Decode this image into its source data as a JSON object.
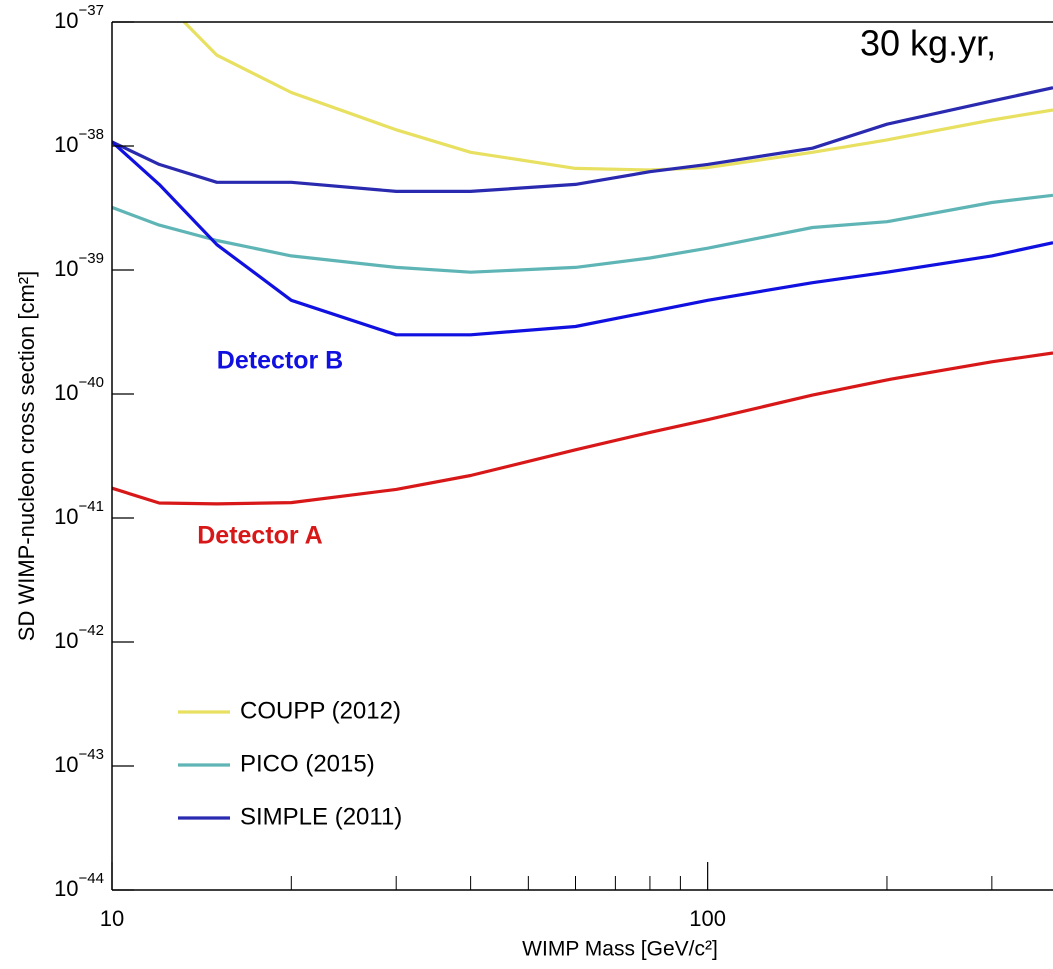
{
  "chart_data": {
    "type": "line",
    "annotation": "30 kg.yr,",
    "xlabel": "WIMP Mass [GeV/c²]",
    "ylabel": "SD WIMP-nucleon cross section [cm²]",
    "xscale": "log",
    "yscale": "log",
    "xlim": [
      10,
      380
    ],
    "ylim": [
      1e-44,
      1e-37
    ],
    "xticks": [
      10,
      100
    ],
    "xminorticks": [
      20,
      30,
      40,
      50,
      60,
      70,
      80,
      90,
      200,
      300
    ],
    "yticks": [
      {
        "value": 1e-44,
        "label": "10−44"
      },
      {
        "value": 1e-43,
        "label": "10−43"
      },
      {
        "value": 1e-42,
        "label": "10−42"
      },
      {
        "value": 1e-41,
        "label": "10−41"
      },
      {
        "value": 1e-40,
        "label": "10−40"
      },
      {
        "value": 1e-39,
        "label": "10−39"
      },
      {
        "value": 1e-38,
        "label": "10−38"
      },
      {
        "value": 1e-37,
        "label": "10−37"
      }
    ],
    "legend": "lower left",
    "x": [
      10,
      12,
      15,
      20,
      30,
      40,
      60,
      80,
      100,
      150,
      200,
      300,
      380
    ],
    "series": [
      {
        "name": "COUPP (2012)",
        "color": "#e8e060",
        "values": [
          null,
          1.6e-37,
          5.4e-38,
          2.7e-38,
          1.35e-38,
          8.9e-39,
          6.6e-39,
          6.4e-39,
          6.7e-39,
          8.9e-39,
          1.12e-38,
          1.62e-38,
          1.95e-38
        ]
      },
      {
        "name": "PICO (2015)",
        "color": "#5fb5b5",
        "values": [
          3.2e-39,
          2.3e-39,
          1.73e-39,
          1.3e-39,
          1.05e-39,
          9.6e-40,
          1.05e-39,
          1.25e-39,
          1.5e-39,
          2.2e-39,
          2.45e-39,
          3.5e-39,
          4e-39
        ]
      },
      {
        "name": "SIMPLE (2011)",
        "color": "#2a2ab0",
        "values": [
          1.08e-38,
          7.1e-39,
          5.1e-39,
          5.1e-39,
          4.3e-39,
          4.3e-39,
          4.9e-39,
          6.2e-39,
          7.1e-39,
          9.6e-39,
          1.5e-38,
          2.3e-38,
          2.95e-38
        ]
      },
      {
        "name": "Detector B",
        "color": "#1010e0",
        "direct_label": true,
        "values": [
          1.08e-38,
          4.9e-39,
          1.6e-39,
          5.7e-40,
          3e-40,
          3e-40,
          3.5e-40,
          4.6e-40,
          5.7e-40,
          7.9e-40,
          9.6e-40,
          1.3e-39,
          1.66e-39
        ]
      },
      {
        "name": "Detector A",
        "color": "#d81818",
        "direct_label": true,
        "values": [
          1.74e-41,
          1.32e-41,
          1.3e-41,
          1.33e-41,
          1.7e-41,
          2.2e-41,
          3.55e-41,
          4.9e-41,
          6.2e-41,
          9.8e-41,
          1.3e-40,
          1.82e-40,
          2.14e-40
        ]
      }
    ]
  }
}
